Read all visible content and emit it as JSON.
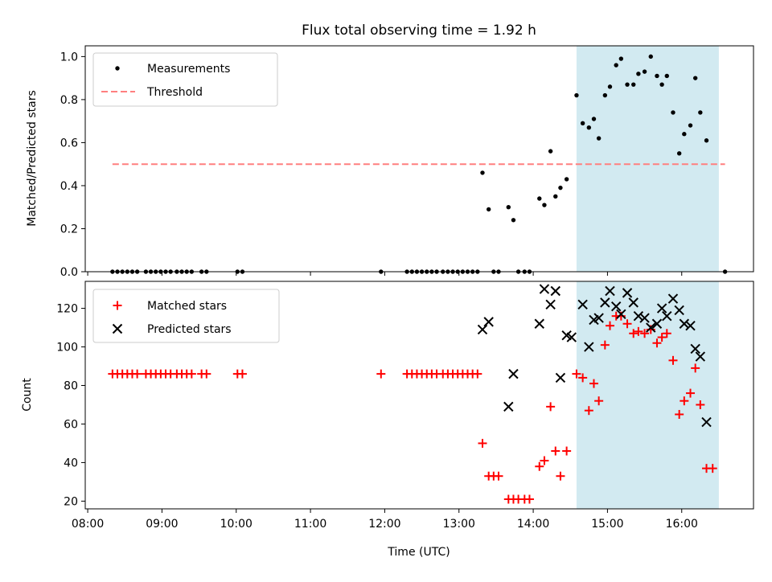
{
  "title": "Flux total observing time = 1.92 h",
  "colors": {
    "measurement": "#000000",
    "threshold": "#ff7f7f",
    "matched": "#ff0000",
    "predicted": "#000000",
    "shade": "#add8e6"
  },
  "chart_data": [
    {
      "type": "scatter",
      "ylabel": "Matched/Predicted stars",
      "xlim": [
        "07:58",
        "16:58"
      ],
      "ylim": [
        0,
        1.05
      ],
      "yticks": [
        "0.0",
        "0.2",
        "0.4",
        "0.6",
        "0.8",
        "1.0"
      ],
      "legend": "top-left",
      "shaded_interval": [
        "14:35",
        "16:30"
      ],
      "threshold": {
        "name": "Threshold",
        "value": 0.5,
        "x_range": [
          "08:20",
          "16:35"
        ]
      },
      "series": [
        {
          "name": "Measurements",
          "points": [
            [
              "08:20",
              0
            ],
            [
              "08:24",
              0
            ],
            [
              "08:28",
              0
            ],
            [
              "08:32",
              0
            ],
            [
              "08:36",
              0
            ],
            [
              "08:40",
              0
            ],
            [
              "08:47",
              0
            ],
            [
              "08:51",
              0
            ],
            [
              "08:55",
              0
            ],
            [
              "08:59",
              0
            ],
            [
              "09:03",
              0
            ],
            [
              "09:07",
              0
            ],
            [
              "09:12",
              0
            ],
            [
              "09:16",
              0
            ],
            [
              "09:20",
              0
            ],
            [
              "09:24",
              0
            ],
            [
              "09:32",
              0
            ],
            [
              "09:36",
              0
            ],
            [
              "10:01",
              0
            ],
            [
              "10:05",
              0
            ],
            [
              "11:57",
              0
            ],
            [
              "12:18",
              0
            ],
            [
              "12:22",
              0
            ],
            [
              "12:26",
              0
            ],
            [
              "12:30",
              0
            ],
            [
              "12:34",
              0
            ],
            [
              "12:38",
              0
            ],
            [
              "12:42",
              0
            ],
            [
              "12:47",
              0
            ],
            [
              "12:51",
              0
            ],
            [
              "12:55",
              0
            ],
            [
              "12:59",
              0
            ],
            [
              "13:03",
              0
            ],
            [
              "13:07",
              0
            ],
            [
              "13:11",
              0
            ],
            [
              "13:15",
              0
            ],
            [
              "13:19",
              0.46
            ],
            [
              "13:24",
              0.29
            ],
            [
              "13:28",
              0
            ],
            [
              "13:32",
              0
            ],
            [
              "13:40",
              0.3
            ],
            [
              "13:44",
              0.24
            ],
            [
              "13:48",
              0
            ],
            [
              "13:53",
              0
            ],
            [
              "13:57",
              0
            ],
            [
              "14:05",
              0.34
            ],
            [
              "14:09",
              0.31
            ],
            [
              "14:14",
              0.56
            ],
            [
              "14:18",
              0.35
            ],
            [
              "14:22",
              0.39
            ],
            [
              "14:27",
              0.43
            ],
            [
              "14:35",
              0.82
            ],
            [
              "14:40",
              0.69
            ],
            [
              "14:45",
              0.67
            ],
            [
              "14:49",
              0.71
            ],
            [
              "14:53",
              0.62
            ],
            [
              "14:58",
              0.82
            ],
            [
              "15:02",
              0.86
            ],
            [
              "15:07",
              0.96
            ],
            [
              "15:11",
              0.99
            ],
            [
              "15:16",
              0.87
            ],
            [
              "15:21",
              0.87
            ],
            [
              "15:25",
              0.92
            ],
            [
              "15:30",
              0.93
            ],
            [
              "15:35",
              1.0
            ],
            [
              "15:40",
              0.91
            ],
            [
              "15:44",
              0.87
            ],
            [
              "15:48",
              0.91
            ],
            [
              "15:53",
              0.74
            ],
            [
              "15:58",
              0.55
            ],
            [
              "16:02",
              0.64
            ],
            [
              "16:07",
              0.68
            ],
            [
              "16:11",
              0.9
            ],
            [
              "16:15",
              0.74
            ],
            [
              "16:20",
              0.61
            ],
            [
              "16:35",
              0
            ]
          ]
        }
      ]
    },
    {
      "type": "scatter",
      "xlabel": "Time (UTC)",
      "ylabel": "Count",
      "xlim": [
        "07:58",
        "16:58"
      ],
      "ylim": [
        16,
        134
      ],
      "xticks": [
        "08:00",
        "09:00",
        "10:00",
        "11:00",
        "12:00",
        "13:00",
        "14:00",
        "15:00",
        "16:00"
      ],
      "yticks": [
        "20",
        "40",
        "60",
        "80",
        "100",
        "120"
      ],
      "legend": "top-left",
      "shaded_interval": [
        "14:35",
        "16:30"
      ],
      "series": [
        {
          "name": "Matched stars",
          "marker": "plus",
          "points": [
            [
              "08:20",
              86
            ],
            [
              "08:24",
              86
            ],
            [
              "08:28",
              86
            ],
            [
              "08:32",
              86
            ],
            [
              "08:36",
              86
            ],
            [
              "08:40",
              86
            ],
            [
              "08:47",
              86
            ],
            [
              "08:51",
              86
            ],
            [
              "08:55",
              86
            ],
            [
              "08:59",
              86
            ],
            [
              "09:03",
              86
            ],
            [
              "09:07",
              86
            ],
            [
              "09:12",
              86
            ],
            [
              "09:16",
              86
            ],
            [
              "09:20",
              86
            ],
            [
              "09:24",
              86
            ],
            [
              "09:32",
              86
            ],
            [
              "09:36",
              86
            ],
            [
              "10:01",
              86
            ],
            [
              "10:05",
              86
            ],
            [
              "11:57",
              86
            ],
            [
              "12:18",
              86
            ],
            [
              "12:22",
              86
            ],
            [
              "12:26",
              86
            ],
            [
              "12:30",
              86
            ],
            [
              "12:34",
              86
            ],
            [
              "12:38",
              86
            ],
            [
              "12:42",
              86
            ],
            [
              "12:47",
              86
            ],
            [
              "12:51",
              86
            ],
            [
              "12:55",
              86
            ],
            [
              "12:59",
              86
            ],
            [
              "13:03",
              86
            ],
            [
              "13:07",
              86
            ],
            [
              "13:11",
              86
            ],
            [
              "13:15",
              86
            ],
            [
              "13:19",
              50
            ],
            [
              "13:24",
              33
            ],
            [
              "13:28",
              33
            ],
            [
              "13:32",
              33
            ],
            [
              "13:40",
              21
            ],
            [
              "13:44",
              21
            ],
            [
              "13:48",
              21
            ],
            [
              "13:53",
              21
            ],
            [
              "13:57",
              21
            ],
            [
              "14:05",
              38
            ],
            [
              "14:09",
              41
            ],
            [
              "14:14",
              69
            ],
            [
              "14:18",
              46
            ],
            [
              "14:22",
              33
            ],
            [
              "14:27",
              46
            ],
            [
              "14:35",
              86
            ],
            [
              "14:40",
              84
            ],
            [
              "14:45",
              67
            ],
            [
              "14:49",
              81
            ],
            [
              "14:53",
              72
            ],
            [
              "14:58",
              101
            ],
            [
              "15:02",
              111
            ],
            [
              "15:07",
              116
            ],
            [
              "15:11",
              116
            ],
            [
              "15:16",
              112
            ],
            [
              "15:21",
              107
            ],
            [
              "15:25",
              108
            ],
            [
              "15:30",
              107
            ],
            [
              "15:35",
              109
            ],
            [
              "15:40",
              102
            ],
            [
              "15:44",
              105
            ],
            [
              "15:48",
              107
            ],
            [
              "15:53",
              93
            ],
            [
              "15:58",
              65
            ],
            [
              "16:02",
              72
            ],
            [
              "16:07",
              76
            ],
            [
              "16:11",
              89
            ],
            [
              "16:15",
              70
            ],
            [
              "16:20",
              37
            ],
            [
              "16:25",
              37
            ]
          ]
        },
        {
          "name": "Predicted stars",
          "marker": "x",
          "points": [
            [
              "13:19",
              109
            ],
            [
              "13:24",
              113
            ],
            [
              "13:40",
              69
            ],
            [
              "13:44",
              86
            ],
            [
              "14:05",
              112
            ],
            [
              "14:09",
              130
            ],
            [
              "14:14",
              122
            ],
            [
              "14:18",
              129
            ],
            [
              "14:22",
              84
            ],
            [
              "14:27",
              106
            ],
            [
              "14:31",
              105
            ],
            [
              "14:40",
              122
            ],
            [
              "14:45",
              100
            ],
            [
              "14:49",
              114
            ],
            [
              "14:53",
              115
            ],
            [
              "14:58",
              123
            ],
            [
              "15:02",
              129
            ],
            [
              "15:07",
              121
            ],
            [
              "15:11",
              117
            ],
            [
              "15:16",
              128
            ],
            [
              "15:21",
              123
            ],
            [
              "15:25",
              116
            ],
            [
              "15:30",
              115
            ],
            [
              "15:35",
              110
            ],
            [
              "15:40",
              112
            ],
            [
              "15:44",
              120
            ],
            [
              "15:48",
              116
            ],
            [
              "15:53",
              125
            ],
            [
              "15:58",
              119
            ],
            [
              "16:02",
              112
            ],
            [
              "16:07",
              111
            ],
            [
              "16:11",
              99
            ],
            [
              "16:15",
              95
            ],
            [
              "16:20",
              61
            ]
          ]
        }
      ]
    }
  ]
}
